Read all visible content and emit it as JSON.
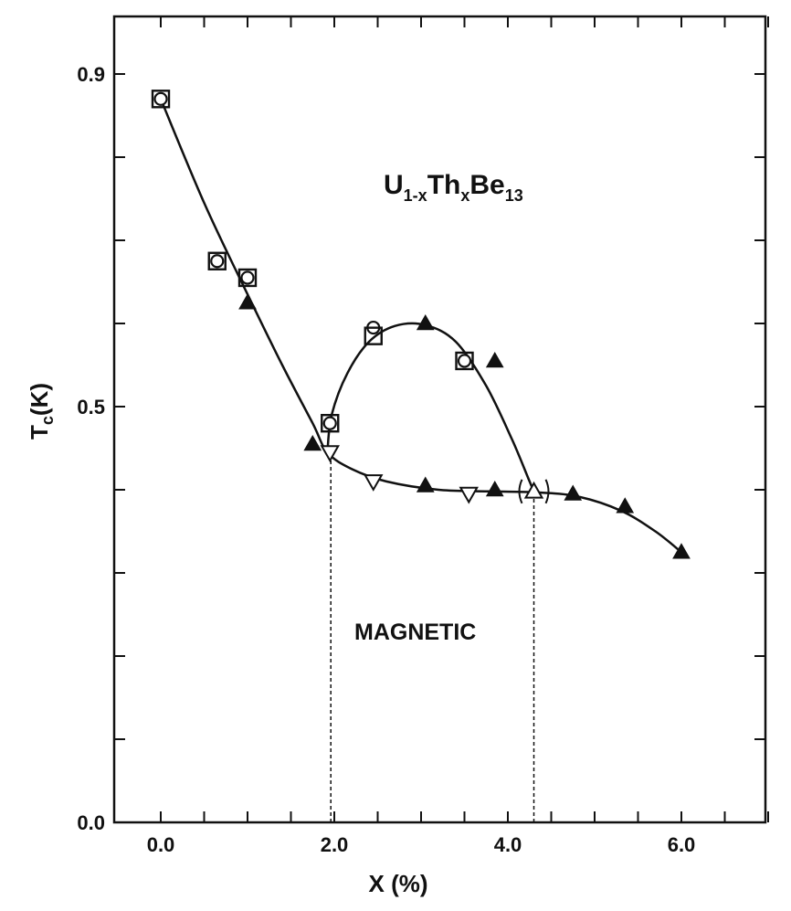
{
  "chart_data": {
    "type": "scatter",
    "title": "",
    "annotations": [
      {
        "kind": "formula",
        "parts": [
          "U",
          "1-x",
          "Th",
          "x",
          "Be",
          "13"
        ]
      },
      {
        "kind": "region",
        "text": "MAGNETIC"
      }
    ],
    "xlabel": "X (%)",
    "ylabel": {
      "main": "T",
      "sub": "c",
      "rest": "(K)"
    },
    "xlim": [
      -0.45,
      7.2
    ],
    "ylim": [
      0.0,
      0.96
    ],
    "x_ticks": [
      0,
      0.5,
      1,
      1.5,
      2,
      2.5,
      3,
      3.5,
      4,
      4.5,
      5,
      5.5,
      6,
      6.5,
      7
    ],
    "x_tick_labels": [
      {
        "x": 0.0,
        "label": "0.0"
      },
      {
        "x": 2.0,
        "label": "2.0"
      },
      {
        "x": 4.0,
        "label": "4.0"
      },
      {
        "x": 6.0,
        "label": "6.0"
      }
    ],
    "y_ticks": [
      0.0,
      0.1,
      0.2,
      0.3,
      0.4,
      0.5,
      0.6,
      0.7,
      0.8,
      0.9
    ],
    "y_tick_labels": [
      {
        "y": 0.0,
        "label": "0.0"
      },
      {
        "y": 0.5,
        "label": "0.5"
      },
      {
        "y": 0.9,
        "label": "0.9"
      }
    ],
    "series": [
      {
        "marker": "open-circle",
        "points": [
          [
            0.0,
            0.87
          ],
          [
            0.65,
            0.675
          ],
          [
            1.0,
            0.655
          ],
          [
            1.95,
            0.48
          ],
          [
            2.45,
            0.595
          ],
          [
            3.5,
            0.555
          ]
        ]
      },
      {
        "marker": "open-square",
        "points": [
          [
            0.0,
            0.87
          ],
          [
            0.65,
            0.675
          ],
          [
            1.0,
            0.655
          ],
          [
            1.95,
            0.48
          ],
          [
            2.45,
            0.585
          ],
          [
            3.5,
            0.555
          ]
        ]
      },
      {
        "marker": "filled-triangle-up",
        "points": [
          [
            1.0,
            0.625
          ],
          [
            1.75,
            0.455
          ],
          [
            3.05,
            0.6
          ],
          [
            3.85,
            0.555
          ],
          [
            3.05,
            0.405
          ],
          [
            3.85,
            0.4
          ],
          [
            4.75,
            0.395
          ],
          [
            5.35,
            0.38
          ],
          [
            6.0,
            0.325
          ]
        ]
      },
      {
        "marker": "open-triangle-down",
        "points": [
          [
            1.95,
            0.445
          ],
          [
            2.45,
            0.41
          ],
          [
            3.55,
            0.395
          ]
        ]
      },
      {
        "marker": "open-triangle-up-bracketed",
        "points": [
          [
            4.3,
            0.398
          ]
        ]
      }
    ],
    "curves": [
      {
        "name": "main",
        "points": [
          [
            0.0,
            0.87
          ],
          [
            0.5,
            0.745
          ],
          [
            1.0,
            0.635
          ],
          [
            1.4,
            0.55
          ],
          [
            1.75,
            0.48
          ],
          [
            1.92,
            0.445
          ],
          [
            2.2,
            0.425
          ],
          [
            2.6,
            0.41
          ],
          [
            3.2,
            0.4
          ],
          [
            3.8,
            0.398
          ],
          [
            4.3,
            0.397
          ],
          [
            4.8,
            0.392
          ],
          [
            5.3,
            0.375
          ],
          [
            5.7,
            0.35
          ],
          [
            6.0,
            0.325
          ]
        ]
      },
      {
        "name": "reentrant",
        "points": [
          [
            1.92,
            0.445
          ],
          [
            1.97,
            0.49
          ],
          [
            2.15,
            0.54
          ],
          [
            2.4,
            0.578
          ],
          [
            2.7,
            0.597
          ],
          [
            3.05,
            0.598
          ],
          [
            3.4,
            0.578
          ],
          [
            3.75,
            0.525
          ],
          [
            4.05,
            0.46
          ],
          [
            4.25,
            0.41
          ],
          [
            4.3,
            0.398
          ]
        ]
      }
    ],
    "boundaries": [
      {
        "x": 1.96,
        "y_top": 0.445
      },
      {
        "x": 4.3,
        "y_top": 0.398
      }
    ],
    "grid": false,
    "legend": "none"
  }
}
